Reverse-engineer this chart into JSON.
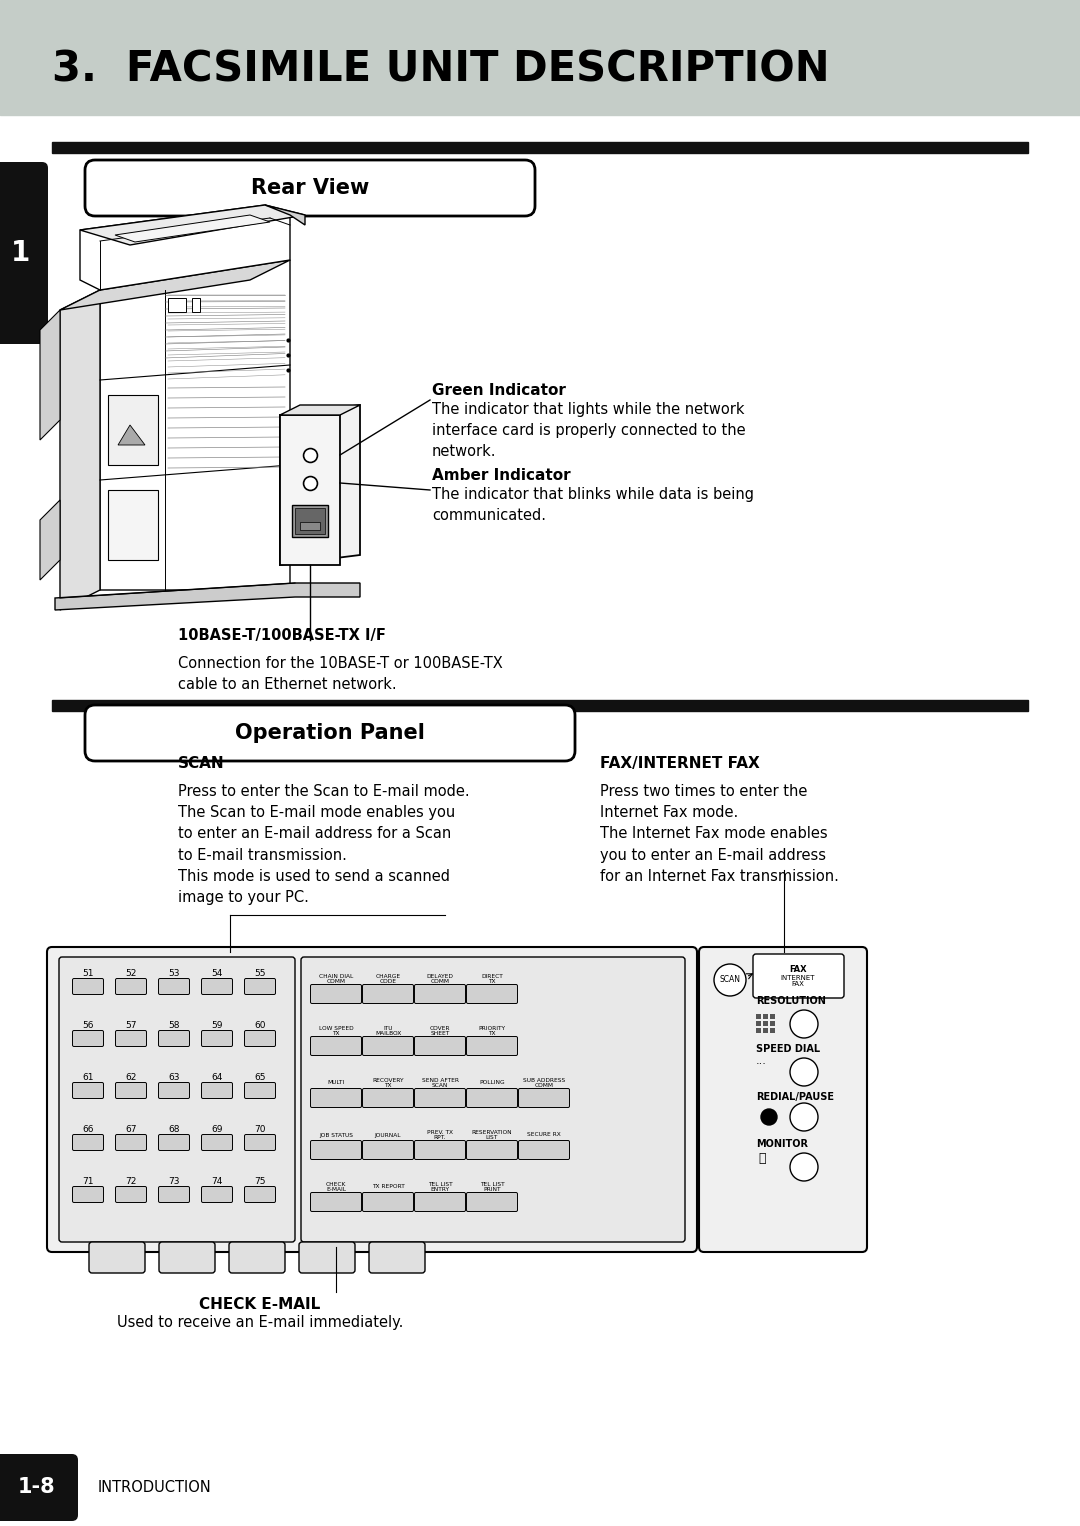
{
  "title": "3.  FACSIMILE UNIT DESCRIPTION",
  "title_bg": "#c5cdc8",
  "title_color": "#000000",
  "title_fontsize": 30,
  "page_bg": "#ffffff",
  "section1_label": "Rear View",
  "section2_label": "Operation Panel",
  "black_bar_color": "#111111",
  "sidebar_color": "#111111",
  "sidebar_number": "1",
  "footer_number": "1-8",
  "footer_text": "INTRODUCTION",
  "green_indicator_title": "Green Indicator",
  "amber_indicator_title": "Amber Indicator",
  "base_label": "10BASE-T/100BASE-TX I/F",
  "base_text1": "Connection for the 10BASE-T or 100BASE-TX",
  "base_text2": "cable to an Ethernet network.",
  "scan_title": "SCAN",
  "fax_title": "FAX/INTERNET FAX",
  "check_title": "CHECK E-MAIL",
  "check_text": "Used to receive an E-mail immediately.",
  "numbers": [
    [
      51,
      52,
      53,
      54,
      55
    ],
    [
      56,
      57,
      58,
      59,
      60
    ],
    [
      61,
      62,
      63,
      64,
      65
    ],
    [
      66,
      67,
      68,
      69,
      70
    ],
    [
      71,
      72,
      73,
      74,
      75
    ]
  ],
  "func_row0": [
    "CHAIN DIAL\nCOMM",
    "CHARGE\nCODE",
    "DELAYED\nCOMM",
    "DIRECT\nTX"
  ],
  "func_row1": [
    "LOW SPEED\nTX",
    "ITU\nMAILBOX",
    "COVER\nSHEET",
    "PRIORITY\nTX"
  ],
  "func_row2": [
    "MULTI",
    "RECOVERY\nTX",
    "SEND AFTER\nSCAN",
    "POLLING",
    "SUB ADDRESS\nCOMM"
  ],
  "func_row3": [
    "JOB STATUS",
    "JOURNAL",
    "PREV. TX\nRPT.",
    "RESERVATION\nLIST",
    "SECURE RX"
  ],
  "func_row4": [
    "CHECK\nE-MAIL",
    "TX REPORT",
    "TEL LIST\nENTRY",
    "TEL LIST\nPRINT"
  ]
}
